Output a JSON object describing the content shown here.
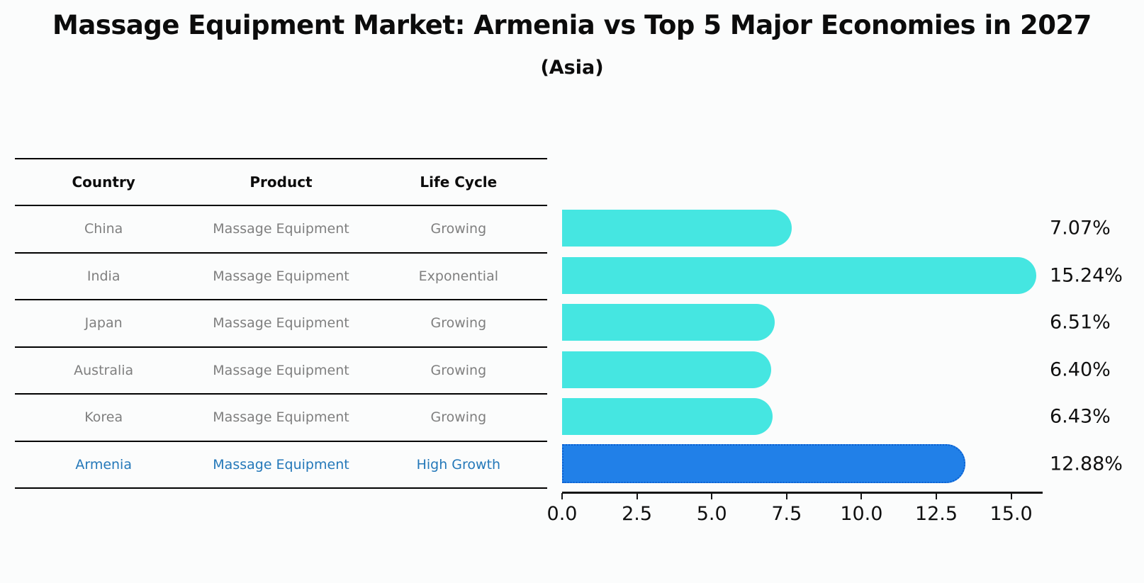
{
  "title": "Massage Equipment Market: Armenia vs Top 5 Major Economies in 2027",
  "subtitle": "(Asia)",
  "table": {
    "headers": [
      "Country",
      "Product",
      "Life Cycle"
    ],
    "rows": [
      {
        "country": "China",
        "product": "Massage Equipment",
        "life_cycle": "Growing",
        "highlight": false
      },
      {
        "country": "India",
        "product": "Massage Equipment",
        "life_cycle": "Exponential",
        "highlight": false
      },
      {
        "country": "Japan",
        "product": "Massage Equipment",
        "life_cycle": "Growing",
        "highlight": false
      },
      {
        "country": "Australia",
        "product": "Massage Equipment",
        "life_cycle": "Growing",
        "highlight": false
      },
      {
        "country": "Korea",
        "product": "Massage Equipment",
        "life_cycle": "Growing",
        "highlight": false
      },
      {
        "country": "Armenia",
        "product": "Massage Equipment",
        "life_cycle": "High Growth",
        "highlight": true
      }
    ]
  },
  "chart_data": {
    "type": "bar",
    "orientation": "horizontal",
    "categories": [
      "China",
      "India",
      "Japan",
      "Australia",
      "Korea",
      "Armenia"
    ],
    "values": [
      7.07,
      15.24,
      6.51,
      6.4,
      6.43,
      12.88
    ],
    "labels": [
      "7.07%",
      "15.24%",
      "6.51%",
      "6.40%",
      "6.43%",
      "12.88%"
    ],
    "highlight_index": 5,
    "xlim": [
      0,
      16
    ],
    "x_ticks": [
      "0.0",
      "2.5",
      "5.0",
      "7.5",
      "10.0",
      "12.5",
      "15.0"
    ],
    "x_tick_values": [
      0,
      2.5,
      5,
      7.5,
      10,
      12.5,
      15
    ],
    "grid": false,
    "legend": false
  },
  "colors": {
    "bar_fill": "#45E6E1",
    "bar_highlight_fill": "#2180E8",
    "bar_highlight_edge": "#0B5FD0",
    "highlight_text": "#2478B9",
    "muted_text": "#7F7F7F",
    "ink": "#0C0C0C",
    "line": "#000000",
    "bg": "#FBFCFC"
  }
}
